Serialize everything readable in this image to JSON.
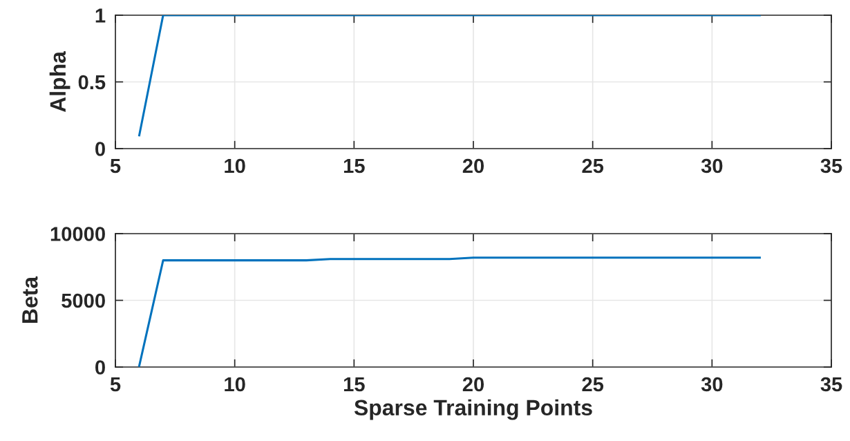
{
  "chart_data": [
    {
      "type": "line",
      "ylabel": "Alpha",
      "x": [
        6,
        7,
        8,
        9,
        10,
        11,
        12,
        13,
        14,
        15,
        16,
        17,
        18,
        19,
        20,
        21,
        22,
        23,
        24,
        25,
        26,
        27,
        28,
        29,
        30,
        31,
        32
      ],
      "series": [
        {
          "color": "#0072bd",
          "values": [
            0.1,
            1,
            1,
            1,
            1,
            1,
            1,
            1,
            1,
            1,
            1,
            1,
            1,
            1,
            1,
            1,
            1,
            1,
            1,
            1,
            1,
            1,
            1,
            1,
            1,
            1,
            1
          ]
        }
      ],
      "xlim": [
        5,
        35
      ],
      "xticks": [
        5,
        10,
        15,
        20,
        25,
        30,
        35
      ],
      "ylim": [
        0,
        1
      ],
      "yticks": [
        0,
        0.5,
        1
      ],
      "grid": true,
      "line_style": "solid",
      "marker": "none"
    },
    {
      "type": "line",
      "ylabel": "Beta",
      "xlabel": "Sparse Training Points",
      "x": [
        6,
        7,
        8,
        9,
        10,
        11,
        12,
        13,
        14,
        15,
        16,
        17,
        18,
        19,
        20,
        21,
        22,
        23,
        24,
        25,
        26,
        27,
        28,
        29,
        30,
        31,
        32
      ],
      "series": [
        {
          "color": "#0072bd",
          "values": [
            100,
            8000,
            8000,
            8000,
            8000,
            8000,
            8000,
            8000,
            8100,
            8100,
            8100,
            8100,
            8100,
            8100,
            8200,
            8200,
            8200,
            8200,
            8200,
            8200,
            8200,
            8200,
            8200,
            8200,
            8200,
            8200,
            8200
          ]
        }
      ],
      "xlim": [
        5,
        35
      ],
      "xticks": [
        5,
        10,
        15,
        20,
        25,
        30,
        35
      ],
      "ylim": [
        0,
        10000
      ],
      "yticks": [
        0,
        5000,
        10000
      ],
      "grid": true,
      "line_style": "solid",
      "marker": "none"
    }
  ]
}
